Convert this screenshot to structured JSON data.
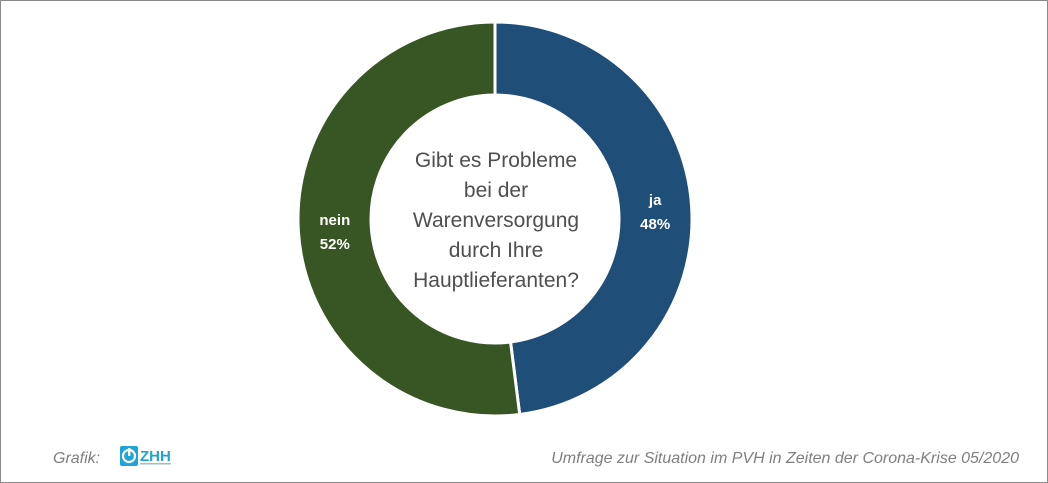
{
  "chart_data": {
    "type": "pie",
    "variant": "donut",
    "categories": [
      "ja",
      "nein"
    ],
    "values": [
      48,
      52
    ],
    "value_labels": [
      "48%",
      "52%"
    ],
    "colors": [
      "#1f4e79",
      "#375623"
    ],
    "center_text": [
      "Gibt es Probleme",
      "bei der",
      "Warenversorgung",
      "durch Ihre",
      "Hauptlieferanten?"
    ]
  },
  "footer": {
    "left_label": "Grafik:",
    "logo_text": "ZHH",
    "logo_icon": "zhh-logo-icon",
    "source": "Umfrage zur Situation im PVH in Zeiten der Corona-Krise 05/2020"
  }
}
